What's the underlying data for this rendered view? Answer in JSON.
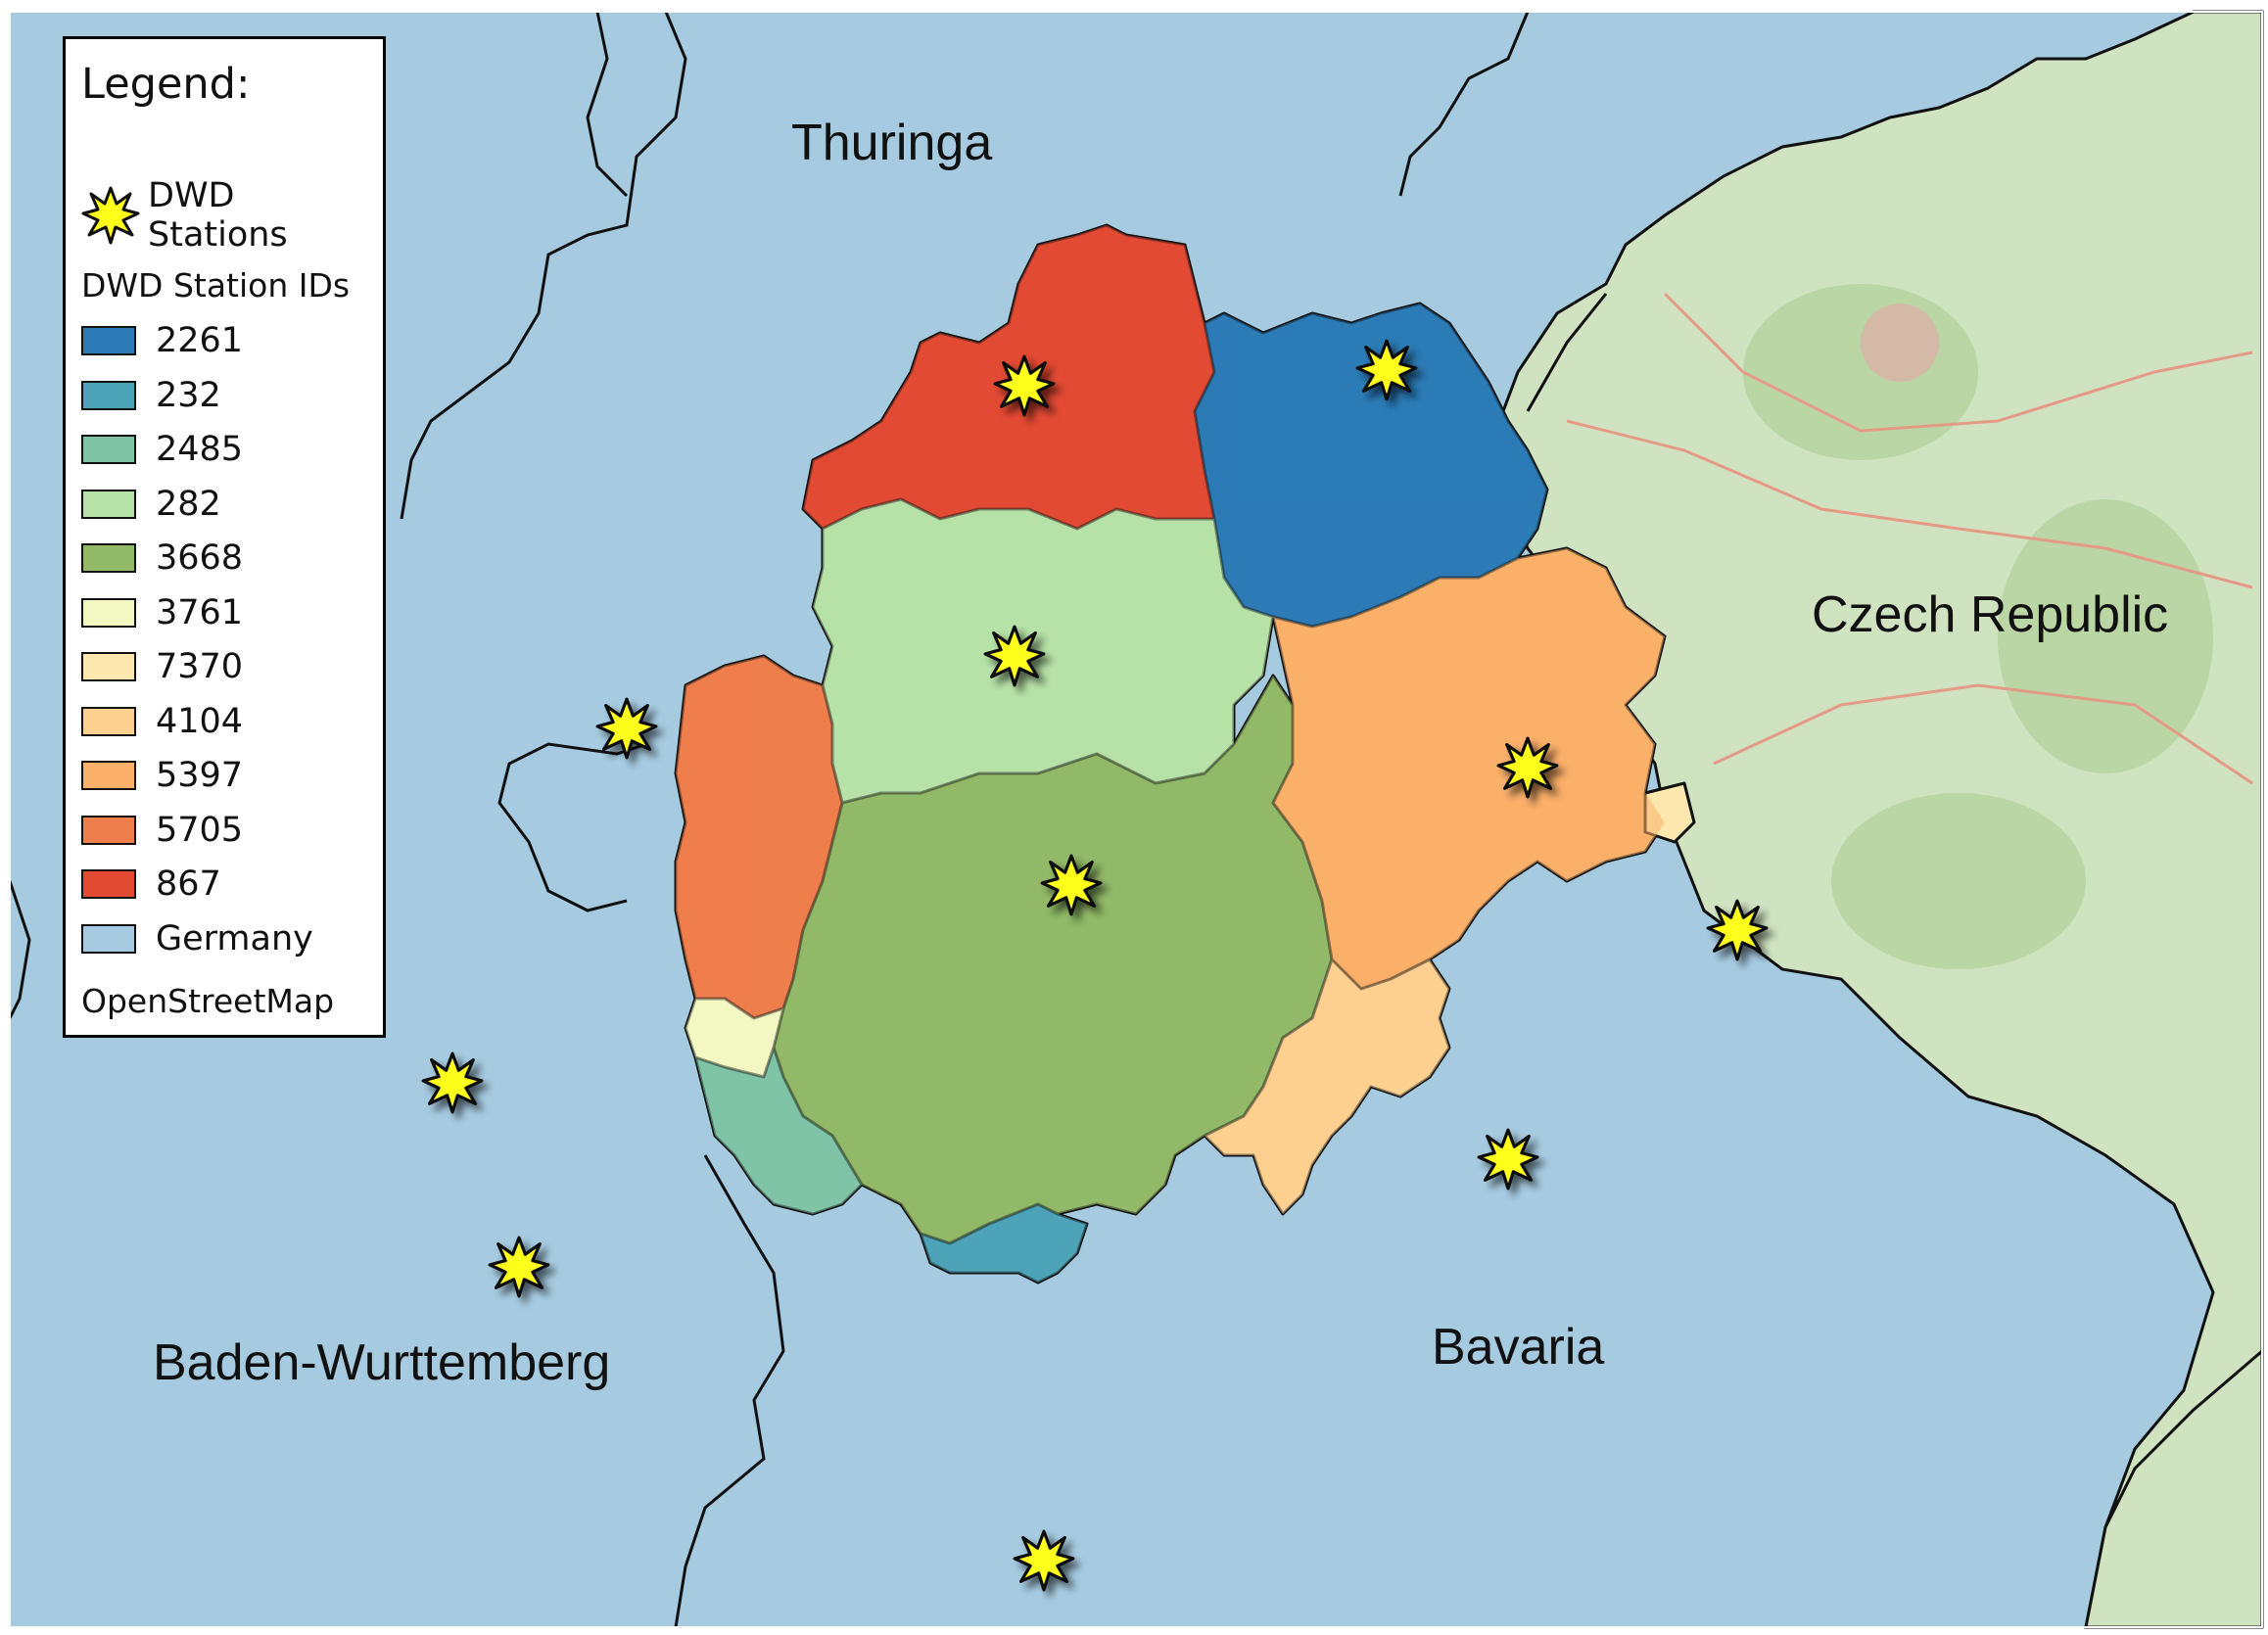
{
  "legend": {
    "title": "Legend:",
    "stations_label": "DWD Stations",
    "station_ids_heading": "DWD Station IDs",
    "entries": [
      {
        "id": "2261",
        "color": "#2c7bb6"
      },
      {
        "id": "232",
        "color": "#4da4b8"
      },
      {
        "id": "2485",
        "color": "#80c4a7"
      },
      {
        "id": "282",
        "color": "#b7e2a7"
      },
      {
        "id": "3668",
        "color": "#91b967"
      },
      {
        "id": "3761",
        "color": "#f3f8c3"
      },
      {
        "id": "7370",
        "color": "#fce8ae"
      },
      {
        "id": "4104",
        "color": "#fdd08f"
      },
      {
        "id": "5397",
        "color": "#fbb06a"
      },
      {
        "id": "5705",
        "color": "#ef7e4d"
      },
      {
        "id": "867",
        "color": "#e34a33"
      },
      {
        "id": "Germany",
        "color": "#a6cbe0"
      }
    ],
    "basemap_label": "OpenStreetMap"
  },
  "labels": {
    "thuringa": "Thuringa",
    "czech": "Czech Republic",
    "baden": "Baden-Wurttemberg",
    "bavaria": "Bavaria"
  },
  "colors": {
    "germany": "#a6cbe0",
    "czech_land": "#cfe3c1",
    "czech_forest": "#b9d6a4",
    "star": "#ffff1a",
    "border": "#111111"
  }
}
